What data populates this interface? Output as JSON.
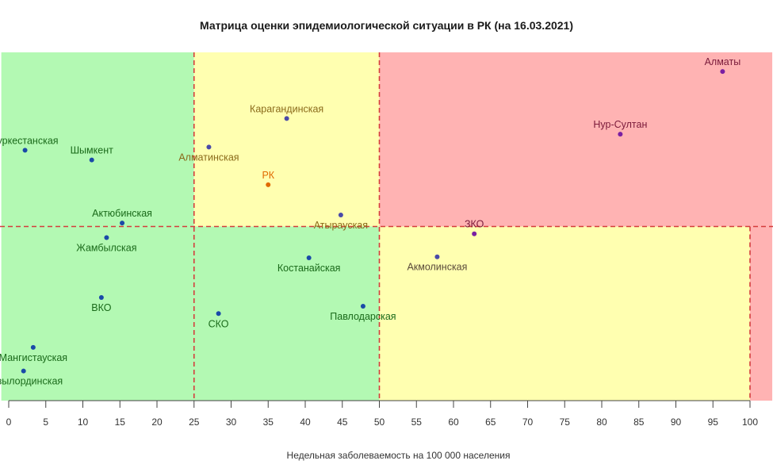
{
  "chart_data": {
    "type": "scatter",
    "title": "Матрица оценки эпидемиологической ситуации в РК (на 16.03.2021)",
    "xlabel": "Недельная заболеваемость на 100 000 населения",
    "ylabel": "",
    "xlim": [
      -1,
      103
    ],
    "ylim": [
      0,
      100
    ],
    "x_ticks": [
      0,
      5,
      10,
      15,
      20,
      25,
      30,
      35,
      40,
      45,
      50,
      55,
      60,
      65,
      70,
      75,
      80,
      85,
      90,
      95,
      100
    ],
    "grid": false,
    "zones": [
      {
        "x": [
          -1,
          25
        ],
        "y": [
          50,
          100
        ],
        "color": "#b3f9b3"
      },
      {
        "x": [
          25,
          50
        ],
        "y": [
          50,
          100
        ],
        "color": "#ffffb0"
      },
      {
        "x": [
          50,
          103
        ],
        "y": [
          50,
          100
        ],
        "color": "#ffb3b3"
      },
      {
        "x": [
          -1,
          50
        ],
        "y": [
          0,
          50
        ],
        "color": "#b3f9b3"
      },
      {
        "x": [
          50,
          100
        ],
        "y": [
          0,
          50
        ],
        "color": "#ffffb0"
      },
      {
        "x": [
          100,
          103
        ],
        "y": [
          0,
          50
        ],
        "color": "#ffb3b3"
      }
    ],
    "thresholds": {
      "x": [
        25,
        50,
        100
      ],
      "y": [
        50
      ],
      "color": "#d43c3c"
    },
    "points": [
      {
        "name": "Алматы",
        "x": 96.3,
        "y": 94.5,
        "label_pos": "above",
        "point_color": "#7a1fa2",
        "label_color": "#7a1a3a"
      },
      {
        "name": "Нур-Султан",
        "x": 82.5,
        "y": 76.5,
        "label_pos": "above",
        "point_color": "#7a1fa2",
        "label_color": "#7a1a3a"
      },
      {
        "name": "Карагандинская",
        "x": 37.5,
        "y": 81.0,
        "label_pos": "above",
        "point_color": "#4a4aa8",
        "label_color": "#8a6a1a"
      },
      {
        "name": "Алматинская",
        "x": 27.0,
        "y": 72.8,
        "label_pos": "below",
        "point_color": "#4a4aa8",
        "label_color": "#8a6a1a"
      },
      {
        "name": "РК",
        "x": 35.0,
        "y": 62.0,
        "label_pos": "above",
        "point_color": "#e06a00",
        "label_color": "#e06a00"
      },
      {
        "name": "Атырауская",
        "x": 44.8,
        "y": 53.3,
        "label_pos": "below",
        "point_color": "#4a4aa8",
        "label_color": "#8a6a1a"
      },
      {
        "name": "ЗКО",
        "x": 62.8,
        "y": 47.9,
        "label_pos": "above",
        "point_color": "#7a1fa2",
        "label_color": "#7a1a3a"
      },
      {
        "name": "Акмолинская",
        "x": 57.8,
        "y": 41.3,
        "label_pos": "below",
        "point_color": "#4a4aa8",
        "label_color": "#5a4a3a"
      },
      {
        "name": "Туркестанская",
        "x": 2.2,
        "y": 71.9,
        "label_pos": "above",
        "point_color": "#1a4aa8",
        "label_color": "#1a6a1a"
      },
      {
        "name": "Шымкент",
        "x": 11.2,
        "y": 69.1,
        "label_pos": "above",
        "point_color": "#1a4aa8",
        "label_color": "#1a6a1a"
      },
      {
        "name": "Актюбинская",
        "x": 15.3,
        "y": 51.0,
        "label_pos": "above",
        "point_color": "#1a4aa8",
        "label_color": "#1a6a1a"
      },
      {
        "name": "Жамбылская",
        "x": 13.2,
        "y": 46.8,
        "label_pos": "below",
        "point_color": "#1a4aa8",
        "label_color": "#1a6a1a"
      },
      {
        "name": "Костанайская",
        "x": 40.5,
        "y": 41.0,
        "label_pos": "below",
        "point_color": "#1a4aa8",
        "label_color": "#1a6a1a"
      },
      {
        "name": "ВКО",
        "x": 12.5,
        "y": 29.6,
        "label_pos": "below",
        "point_color": "#1a4aa8",
        "label_color": "#1a6a1a"
      },
      {
        "name": "СКО",
        "x": 28.3,
        "y": 25.0,
        "label_pos": "below",
        "point_color": "#1a4aa8",
        "label_color": "#1a6a1a"
      },
      {
        "name": "Павлодарская",
        "x": 47.8,
        "y": 27.1,
        "label_pos": "below",
        "point_color": "#1a4aa8",
        "label_color": "#1a6a1a"
      },
      {
        "name": "Мангистауская",
        "x": 3.3,
        "y": 15.3,
        "label_pos": "below",
        "point_color": "#1a4aa8",
        "label_color": "#1a6a1a"
      },
      {
        "name": "Кызылординская",
        "x": 2.0,
        "y": 8.5,
        "label_pos": "below",
        "point_color": "#1a4aa8",
        "label_color": "#1a6a1a"
      }
    ]
  }
}
